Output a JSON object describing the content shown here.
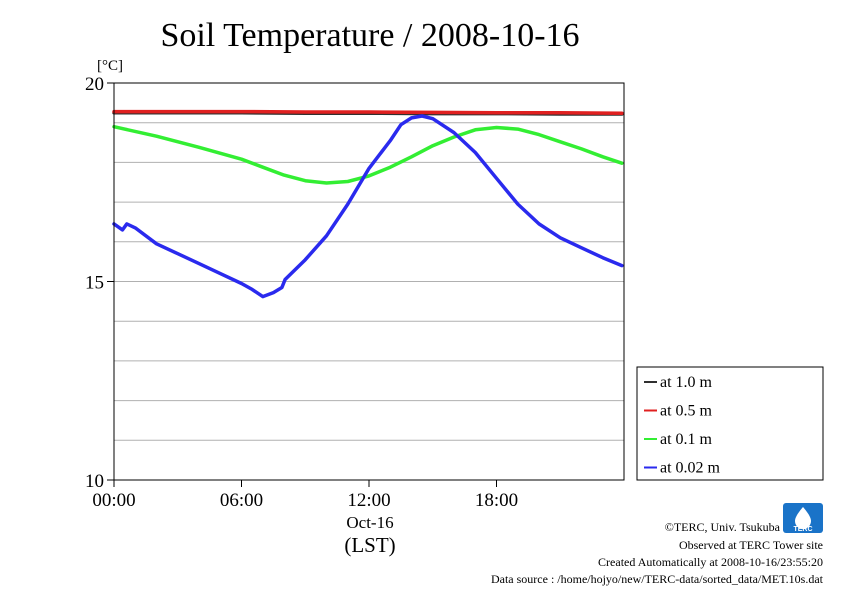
{
  "chart_data": {
    "type": "line",
    "title": "Soil Temperature / 2008-10-16",
    "y_unit": "[°C]",
    "ylim": [
      10,
      20
    ],
    "y_tick_labels": [
      "20",
      "15",
      "10"
    ],
    "y_tick_values": [
      20,
      15,
      10
    ],
    "y_minor_step": 1,
    "xlim": [
      0,
      24
    ],
    "x_tick_values": [
      0,
      6,
      12,
      18
    ],
    "x_tick_labels": [
      "00:00",
      "06:00",
      "12:00",
      "18:00"
    ],
    "x_date_label": "Oct-16",
    "x_axis_label": "(LST)",
    "grid": true,
    "legend_position": "right",
    "series": [
      {
        "name": "at 1.0 m",
        "color": "#303030",
        "x": [
          0,
          3,
          6,
          9,
          12,
          15,
          18,
          21,
          23.9
        ],
        "y": [
          19.25,
          19.25,
          19.25,
          19.24,
          19.24,
          19.23,
          19.23,
          19.22,
          19.22
        ]
      },
      {
        "name": "at 0.5 m",
        "color": "#e02020",
        "x": [
          0,
          3,
          6,
          9,
          12,
          15,
          18,
          21,
          23.9
        ],
        "y": [
          19.28,
          19.28,
          19.28,
          19.27,
          19.27,
          19.26,
          19.25,
          19.25,
          19.24
        ]
      },
      {
        "name": "at 0.1 m",
        "color": "#33ee33",
        "x": [
          0,
          2,
          4,
          6,
          7,
          8,
          9,
          10,
          11,
          12,
          13,
          14,
          15,
          16,
          17,
          18,
          19,
          20,
          21,
          22,
          23,
          23.9
        ],
        "y": [
          18.9,
          18.66,
          18.38,
          18.08,
          17.88,
          17.68,
          17.54,
          17.48,
          17.52,
          17.66,
          17.88,
          18.14,
          18.42,
          18.64,
          18.82,
          18.88,
          18.84,
          18.7,
          18.52,
          18.34,
          18.14,
          17.98
        ]
      },
      {
        "name": "at 0.02 m",
        "color": "#2a2aee",
        "x": [
          0,
          0.4,
          0.6,
          1,
          2,
          3,
          4,
          5,
          6,
          6.5,
          7,
          7.5,
          7.9,
          8.05,
          9,
          10,
          11,
          12,
          13,
          13.5,
          14,
          14.5,
          15,
          16,
          17,
          18,
          19,
          20,
          21,
          22,
          23,
          23.9
        ],
        "y": [
          16.45,
          16.3,
          16.45,
          16.35,
          15.95,
          15.7,
          15.45,
          15.2,
          14.95,
          14.8,
          14.62,
          14.72,
          14.85,
          15.05,
          15.55,
          16.15,
          16.95,
          17.85,
          18.55,
          18.95,
          19.12,
          19.17,
          19.1,
          18.75,
          18.25,
          17.6,
          16.95,
          16.45,
          16.1,
          15.85,
          15.6,
          15.4
        ]
      }
    ]
  },
  "credits": {
    "copyright": "©TERC, Univ. Tsukuba",
    "observed": "Observed at TERC Tower site",
    "created": "Created Automatically at 2008-10-16/23:55:20",
    "source": "Data source : /home/hojyo/new/TERC-data/sorted_data/MET.10s.dat",
    "logo_text": "TERC"
  }
}
